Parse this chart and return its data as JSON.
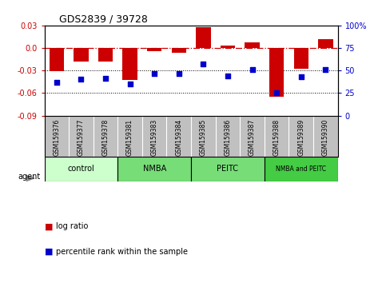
{
  "title": "GDS2839 / 39728",
  "samples": [
    "GSM159376",
    "GSM159377",
    "GSM159378",
    "GSM159381",
    "GSM159383",
    "GSM159384",
    "GSM159385",
    "GSM159386",
    "GSM159387",
    "GSM159388",
    "GSM159389",
    "GSM159390"
  ],
  "log_ratio": [
    -0.031,
    -0.018,
    -0.018,
    -0.043,
    -0.004,
    -0.006,
    0.028,
    0.003,
    0.008,
    -0.065,
    -0.028,
    0.012
  ],
  "percentile_rank": [
    37,
    40,
    41,
    35,
    47,
    47,
    57,
    44,
    51,
    25,
    43,
    51
  ],
  "bar_color": "#cc0000",
  "dot_color": "#0000cc",
  "ylim": [
    -0.09,
    0.03
  ],
  "yticks_left": [
    -0.09,
    -0.06,
    -0.03,
    0.0,
    0.03
  ],
  "yticks_right": [
    0,
    25,
    50,
    75,
    100
  ],
  "hlines": [
    -0.03,
    -0.06
  ],
  "dashed_line_y": 0.0,
  "groups": [
    {
      "label": "control",
      "start": 0,
      "end": 3,
      "color": "#ccffcc"
    },
    {
      "label": "NMBA",
      "start": 3,
      "end": 6,
      "color": "#66dd66"
    },
    {
      "label": "PEITC",
      "start": 6,
      "end": 9,
      "color": "#66dd66"
    },
    {
      "label": "NMBA and PEITC",
      "start": 9,
      "end": 12,
      "color": "#55cc55"
    }
  ],
  "legend_items": [
    {
      "label": "log ratio",
      "color": "#cc0000"
    },
    {
      "label": "percentile rank within the sample",
      "color": "#0000cc"
    }
  ],
  "agent_label": "agent",
  "plot_bg_color": "#ffffff",
  "label_bg_color": "#c0c0c0",
  "fig_bg_color": "#ffffff"
}
